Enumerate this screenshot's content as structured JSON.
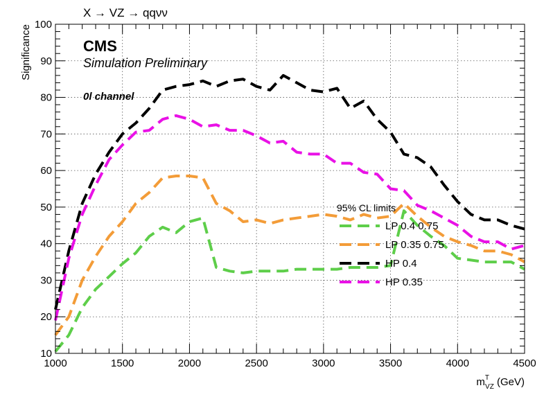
{
  "chart_data": {
    "type": "line",
    "title": "X → VZ → qqνν",
    "annotations": {
      "experiment": "CMS",
      "status": "Simulation Preliminary",
      "channel": "0l channel"
    },
    "xlabel": {
      "main": "m",
      "sup": "T",
      "sub": "VZ",
      "unit": " (GeV)"
    },
    "ylabel": "Significance",
    "xlim": [
      1000,
      4500
    ],
    "ylim": [
      10,
      100
    ],
    "x_ticks": [
      1000,
      1500,
      2000,
      2500,
      3000,
      3500,
      4000,
      4500
    ],
    "y_ticks": [
      10,
      20,
      30,
      40,
      50,
      60,
      70,
      80,
      90,
      100
    ],
    "grid": true,
    "legend": {
      "title": "95% CL limits",
      "placement": "center-right"
    },
    "series": [
      {
        "name": "LP 0.4 0.75",
        "color": "#5ece4a",
        "points": [
          [
            1000,
            10.5
          ],
          [
            1100,
            15
          ],
          [
            1200,
            22.5
          ],
          [
            1300,
            27.5
          ],
          [
            1400,
            31
          ],
          [
            1500,
            34.5
          ],
          [
            1600,
            37.5
          ],
          [
            1700,
            42
          ],
          [
            1800,
            44.5
          ],
          [
            1900,
            43
          ],
          [
            2000,
            46
          ],
          [
            2100,
            47
          ],
          [
            2200,
            33.5
          ],
          [
            2300,
            32.5
          ],
          [
            2400,
            32
          ],
          [
            2500,
            32.5
          ],
          [
            2600,
            32.5
          ],
          [
            2700,
            32.5
          ],
          [
            2800,
            33
          ],
          [
            2900,
            33
          ],
          [
            3000,
            33
          ],
          [
            3100,
            33
          ],
          [
            3200,
            33.5
          ],
          [
            3300,
            33.5
          ],
          [
            3400,
            33.5
          ],
          [
            3500,
            34
          ],
          [
            3600,
            49
          ],
          [
            3700,
            45
          ],
          [
            3800,
            42
          ],
          [
            3900,
            39.5
          ],
          [
            4000,
            36
          ],
          [
            4100,
            35.5
          ],
          [
            4200,
            35
          ],
          [
            4300,
            35
          ],
          [
            4400,
            35
          ],
          [
            4500,
            33
          ]
        ]
      },
      {
        "name": "LP 0.35 0.75",
        "color": "#f39c38",
        "points": [
          [
            1000,
            15
          ],
          [
            1100,
            20
          ],
          [
            1200,
            30
          ],
          [
            1300,
            36.5
          ],
          [
            1400,
            42
          ],
          [
            1500,
            46
          ],
          [
            1600,
            51
          ],
          [
            1700,
            54
          ],
          [
            1800,
            58
          ],
          [
            1900,
            58.5
          ],
          [
            2000,
            58.5
          ],
          [
            2100,
            58
          ],
          [
            2200,
            51
          ],
          [
            2300,
            49
          ],
          [
            2400,
            46
          ],
          [
            2500,
            46.5
          ],
          [
            2600,
            45.5
          ],
          [
            2700,
            46.5
          ],
          [
            2800,
            47
          ],
          [
            2900,
            47.5
          ],
          [
            3000,
            48
          ],
          [
            3100,
            47.5
          ],
          [
            3200,
            46.5
          ],
          [
            3300,
            48
          ],
          [
            3400,
            47
          ],
          [
            3500,
            47.5
          ],
          [
            3600,
            51
          ],
          [
            3700,
            47.5
          ],
          [
            3800,
            44.5
          ],
          [
            3900,
            42
          ],
          [
            4000,
            40.5
          ],
          [
            4100,
            39.5
          ],
          [
            4200,
            38
          ],
          [
            4300,
            38
          ],
          [
            4400,
            37
          ],
          [
            4500,
            35
          ]
        ]
      },
      {
        "name": "HP 0.4",
        "color": "#000000",
        "points": [
          [
            1000,
            22
          ],
          [
            1100,
            38
          ],
          [
            1200,
            51
          ],
          [
            1300,
            59
          ],
          [
            1400,
            65
          ],
          [
            1500,
            70
          ],
          [
            1600,
            73
          ],
          [
            1700,
            77
          ],
          [
            1800,
            82
          ],
          [
            1900,
            83
          ],
          [
            2000,
            83.5
          ],
          [
            2100,
            84.5
          ],
          [
            2200,
            83
          ],
          [
            2300,
            84.5
          ],
          [
            2400,
            85
          ],
          [
            2500,
            83
          ],
          [
            2600,
            82
          ],
          [
            2700,
            86
          ],
          [
            2800,
            84
          ],
          [
            2900,
            82
          ],
          [
            3000,
            81.5
          ],
          [
            3100,
            82.5
          ],
          [
            3200,
            77
          ],
          [
            3300,
            79
          ],
          [
            3400,
            74
          ],
          [
            3500,
            70.5
          ],
          [
            3600,
            64.5
          ],
          [
            3700,
            63.5
          ],
          [
            3800,
            61
          ],
          [
            3900,
            56
          ],
          [
            4000,
            51.5
          ],
          [
            4100,
            48
          ],
          [
            4200,
            46.5
          ],
          [
            4300,
            46.5
          ],
          [
            4400,
            45
          ],
          [
            4500,
            44
          ]
        ]
      },
      {
        "name": "HP 0.35",
        "color": "#e911e6",
        "points": [
          [
            1000,
            19
          ],
          [
            1100,
            36
          ],
          [
            1200,
            48
          ],
          [
            1300,
            56
          ],
          [
            1400,
            63
          ],
          [
            1500,
            67
          ],
          [
            1600,
            70.5
          ],
          [
            1700,
            71
          ],
          [
            1800,
            74
          ],
          [
            1900,
            75
          ],
          [
            2000,
            74
          ],
          [
            2100,
            72
          ],
          [
            2200,
            72.5
          ],
          [
            2300,
            71
          ],
          [
            2400,
            71
          ],
          [
            2500,
            69.5
          ],
          [
            2600,
            67.5
          ],
          [
            2700,
            68
          ],
          [
            2800,
            65
          ],
          [
            2900,
            64.5
          ],
          [
            3000,
            64.5
          ],
          [
            3100,
            62
          ],
          [
            3200,
            62
          ],
          [
            3300,
            59.5
          ],
          [
            3400,
            59
          ],
          [
            3500,
            55
          ],
          [
            3600,
            54.5
          ],
          [
            3700,
            50.5
          ],
          [
            3800,
            49
          ],
          [
            3900,
            47
          ],
          [
            4000,
            45
          ],
          [
            4100,
            42
          ],
          [
            4200,
            40.5
          ],
          [
            4300,
            40.5
          ],
          [
            4400,
            38.5
          ],
          [
            4500,
            39.5
          ]
        ]
      }
    ]
  }
}
